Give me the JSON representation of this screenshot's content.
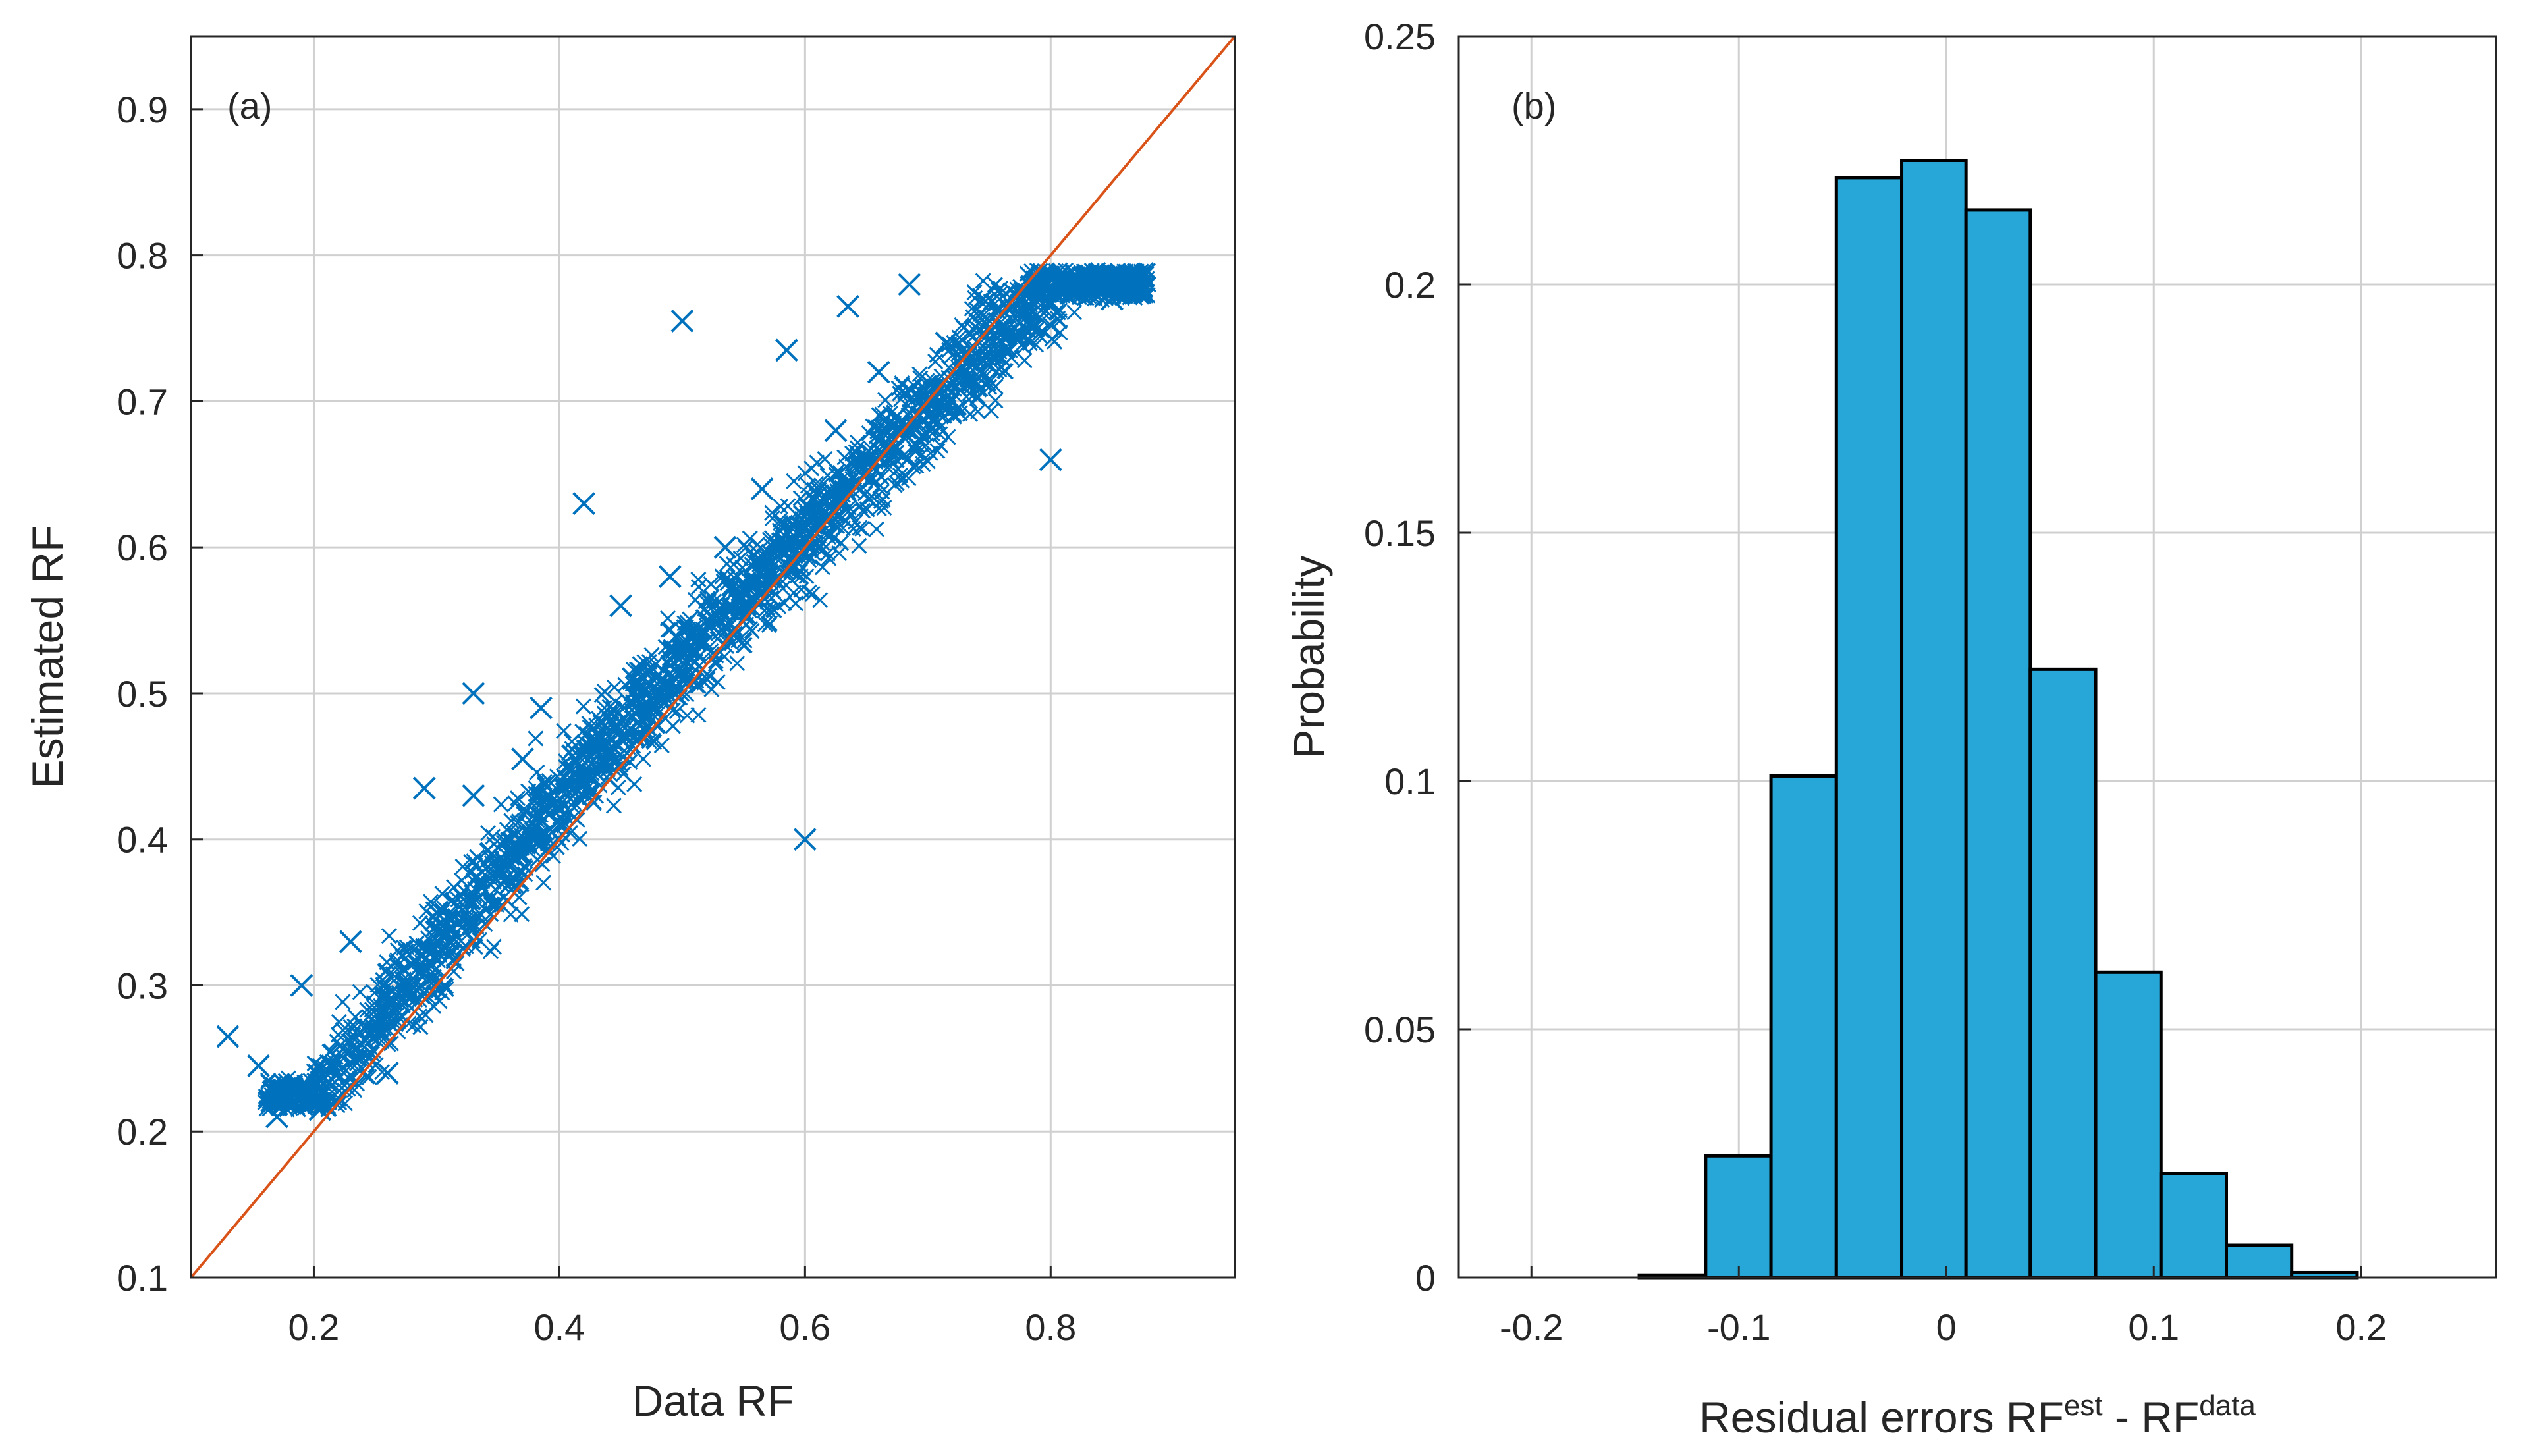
{
  "chart_data": [
    {
      "type": "scatter",
      "panel_label": "(a)",
      "xlabel": "Data RF",
      "ylabel": "Estimated RF",
      "xlim": [
        0.1,
        0.95
      ],
      "ylim": [
        0.1,
        0.95
      ],
      "xticks": [
        0.2,
        0.4,
        0.6,
        0.8
      ],
      "xtick_labels": [
        "0.2",
        "0.4",
        "0.6",
        "0.8"
      ],
      "yticks": [
        0.1,
        0.2,
        0.3,
        0.4,
        0.5,
        0.6,
        0.7,
        0.8,
        0.9
      ],
      "ytick_labels": [
        "0.1",
        "0.2",
        "0.3",
        "0.4",
        "0.5",
        "0.6",
        "0.7",
        "0.8",
        "0.9"
      ],
      "grid": true,
      "marker": "x",
      "marker_color": "#0072BD",
      "reference_line": {
        "x": [
          0.1,
          0.95
        ],
        "y": [
          0.1,
          0.95
        ],
        "color": "#D95319"
      },
      "points": [
        [
          0.13,
          0.265
        ],
        [
          0.155,
          0.245
        ],
        [
          0.17,
          0.21
        ],
        [
          0.19,
          0.3
        ],
        [
          0.205,
          0.215
        ],
        [
          0.215,
          0.245
        ],
        [
          0.23,
          0.33
        ],
        [
          0.25,
          0.27
        ],
        [
          0.26,
          0.24
        ],
        [
          0.275,
          0.3
        ],
        [
          0.29,
          0.435
        ],
        [
          0.3,
          0.35
        ],
        [
          0.31,
          0.32
        ],
        [
          0.33,
          0.5
        ],
        [
          0.33,
          0.43
        ],
        [
          0.345,
          0.39
        ],
        [
          0.36,
          0.37
        ],
        [
          0.37,
          0.455
        ],
        [
          0.385,
          0.49
        ],
        [
          0.4,
          0.41
        ],
        [
          0.42,
          0.63
        ],
        [
          0.42,
          0.44
        ],
        [
          0.435,
          0.47
        ],
        [
          0.45,
          0.56
        ],
        [
          0.46,
          0.51
        ],
        [
          0.475,
          0.49
        ],
        [
          0.49,
          0.58
        ],
        [
          0.5,
          0.755
        ],
        [
          0.505,
          0.53
        ],
        [
          0.52,
          0.55
        ],
        [
          0.535,
          0.6
        ],
        [
          0.55,
          0.57
        ],
        [
          0.565,
          0.64
        ],
        [
          0.585,
          0.735
        ],
        [
          0.58,
          0.6
        ],
        [
          0.6,
          0.4
        ],
        [
          0.61,
          0.63
        ],
        [
          0.625,
          0.68
        ],
        [
          0.635,
          0.765
        ],
        [
          0.65,
          0.66
        ],
        [
          0.66,
          0.72
        ],
        [
          0.675,
          0.69
        ],
        [
          0.685,
          0.78
        ],
        [
          0.7,
          0.7
        ],
        [
          0.715,
          0.74
        ],
        [
          0.73,
          0.72
        ],
        [
          0.745,
          0.77
        ],
        [
          0.76,
          0.75
        ],
        [
          0.775,
          0.76
        ],
        [
          0.79,
          0.77
        ],
        [
          0.8,
          0.66
        ],
        [
          0.81,
          0.78
        ],
        [
          0.83,
          0.785
        ],
        [
          0.85,
          0.77
        ],
        [
          0.875,
          0.785
        ]
      ]
    },
    {
      "type": "bar",
      "panel_label": "(b)",
      "xlabel": "Residual errors RF",
      "xlabel_sup1": "est",
      "xlabel_mid": " - RF",
      "xlabel_sup2": "data",
      "ylabel": "Probability",
      "xlim": [
        -0.235,
        0.265
      ],
      "ylim": [
        0,
        0.25
      ],
      "xticks": [
        -0.2,
        -0.1,
        0,
        0.1,
        0.2
      ],
      "xtick_labels": [
        "-0.2",
        "-0.1",
        "0",
        "0.1",
        "0.2"
      ],
      "yticks": [
        0,
        0.05,
        0.1,
        0.15,
        0.2,
        0.25
      ],
      "ytick_labels": [
        "0",
        "0.05",
        "0.1",
        "0.15",
        "0.2",
        "0.25"
      ],
      "grid": true,
      "bar_color": "#27A7D8",
      "bin_edges": [
        -0.148,
        -0.116,
        -0.0845,
        -0.053,
        -0.0215,
        0.0095,
        0.0405,
        0.072,
        0.1035,
        0.135,
        0.1665,
        0.198
      ],
      "values": [
        0.0005,
        0.0245,
        0.101,
        0.2215,
        0.225,
        0.215,
        0.1225,
        0.0615,
        0.021,
        0.0065,
        0.001
      ]
    }
  ]
}
